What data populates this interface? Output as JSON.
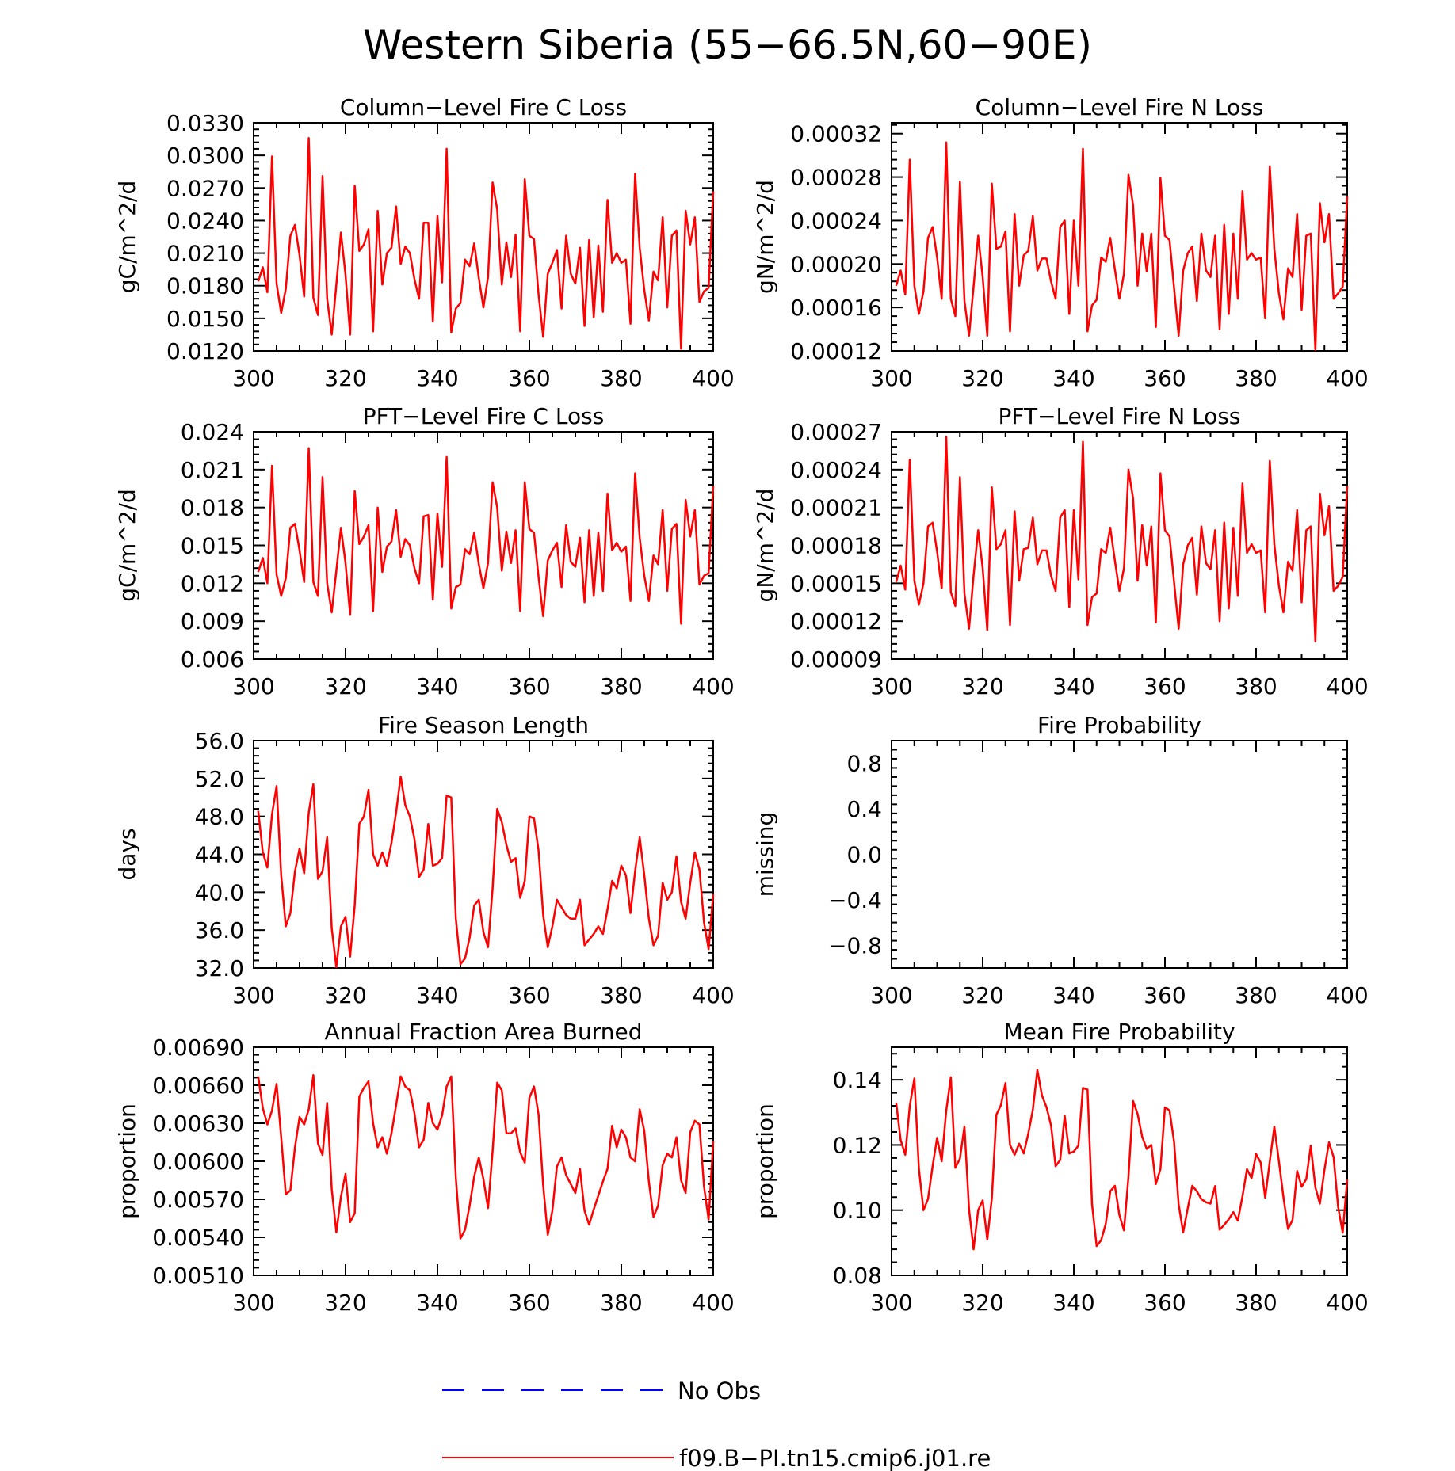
{
  "title": "Western Siberia (55−66.5N,60−90E)",
  "colors": {
    "model": "#ff0000",
    "obs": "#0000ff",
    "axes": "#000000"
  },
  "legend": {
    "obs_label": "No Obs",
    "model_label": "f09.B−PI.tn15.cmip6.j01.re"
  },
  "chart_data": [
    {
      "type": "line",
      "title": "Column−Level Fire C Loss",
      "ylabel": "gC/m^2/d",
      "xlim": [
        300,
        400
      ],
      "ylim": [
        0.012,
        0.033
      ],
      "xticks": [
        300,
        320,
        340,
        360,
        380,
        400
      ],
      "yticks": [
        "0.0120",
        "0.0150",
        "0.0180",
        "0.0210",
        "0.0240",
        "0.0270",
        "0.0300",
        "0.0330"
      ],
      "series": [
        {
          "name": "f09.B−PI.tn15.cmip6.j01.re",
          "x_start": 301,
          "x_step": 1,
          "y": [
            0.0184,
            0.0197,
            0.0174,
            0.0299,
            0.0182,
            0.0155,
            0.0177,
            0.0226,
            0.0236,
            0.0208,
            0.017,
            0.0316,
            0.0169,
            0.0153,
            0.0281,
            0.0168,
            0.0135,
            0.0181,
            0.0229,
            0.019,
            0.0135,
            0.0272,
            0.0212,
            0.0218,
            0.0232,
            0.0138,
            0.0249,
            0.0181,
            0.021,
            0.0215,
            0.0253,
            0.02,
            0.0216,
            0.021,
            0.0186,
            0.0168,
            0.0238,
            0.0238,
            0.0147,
            0.0244,
            0.0183,
            0.0306,
            0.0137,
            0.0159,
            0.0164,
            0.0204,
            0.0198,
            0.0219,
            0.0187,
            0.016,
            0.0188,
            0.0275,
            0.025,
            0.0181,
            0.022,
            0.0188,
            0.0227,
            0.0138,
            0.0278,
            0.0226,
            0.0223,
            0.0172,
            0.0133,
            0.0191,
            0.0201,
            0.0213,
            0.0159,
            0.0226,
            0.0191,
            0.0182,
            0.0215,
            0.0143,
            0.0222,
            0.0151,
            0.0217,
            0.0156,
            0.0259,
            0.0201,
            0.021,
            0.0201,
            0.0204,
            0.0145,
            0.0283,
            0.0215,
            0.0176,
            0.0148,
            0.0193,
            0.0185,
            0.0243,
            0.016,
            0.0226,
            0.0231,
            0.0122,
            0.0249,
            0.0218,
            0.0243,
            0.0165,
            0.0175,
            0.0178,
            0.0267
          ]
        }
      ]
    },
    {
      "type": "line",
      "title": "Column−Level Fire N Loss",
      "ylabel": "gN/m^2/d",
      "xlim": [
        300,
        400
      ],
      "ylim": [
        0.00012,
        0.00033
      ],
      "xticks": [
        300,
        320,
        340,
        360,
        380,
        400
      ],
      "yticks": [
        "0.00012",
        "0.00016",
        "0.00020",
        "0.00024",
        "0.00028",
        "0.00032"
      ],
      "series": [
        {
          "name": "f09.B−PI.tn15.cmip6.j01.re",
          "x_start": 301,
          "x_step": 1,
          "y": [
            0.00018,
            0.000194,
            0.000172,
            0.000296,
            0.00018,
            0.000154,
            0.000175,
            0.000224,
            0.000234,
            0.000206,
            0.000168,
            0.000312,
            0.000168,
            0.000152,
            0.000276,
            0.000166,
            0.000134,
            0.000179,
            0.000226,
            0.000188,
            0.000134,
            0.000274,
            0.000214,
            0.000216,
            0.00023,
            0.000138,
            0.000246,
            0.00018,
            0.000208,
            0.000212,
            0.000244,
            0.000194,
            0.000205,
            0.000205,
            0.000184,
            0.000168,
            0.000234,
            0.00024,
            0.000154,
            0.00024,
            0.00018,
            0.000306,
            0.000138,
            0.000162,
            0.000167,
            0.000206,
            0.000202,
            0.000224,
            0.000195,
            0.000168,
            0.000191,
            0.000282,
            0.000254,
            0.00018,
            0.000228,
            0.000193,
            0.000228,
            0.000142,
            0.000279,
            0.000226,
            0.000222,
            0.000178,
            0.000134,
            0.000194,
            0.00021,
            0.000216,
            0.000166,
            0.000228,
            0.000194,
            0.000188,
            0.000226,
            0.00014,
            0.000236,
            0.000154,
            0.000228,
            0.000168,
            0.000267,
            0.000204,
            0.00021,
            0.000204,
            0.000206,
            0.00015,
            0.00029,
            0.000214,
            0.000173,
            0.000149,
            0.000196,
            0.000188,
            0.000246,
            0.000158,
            0.000226,
            0.000228,
            0.000121,
            0.000256,
            0.00022,
            0.000246,
            0.000168,
            0.000173,
            0.000179,
            0.000262
          ]
        }
      ]
    },
    {
      "type": "line",
      "title": "PFT−Level Fire C Loss",
      "ylabel": "gC/m^2/d",
      "xlim": [
        300,
        400
      ],
      "ylim": [
        0.006,
        0.024
      ],
      "xticks": [
        300,
        320,
        340,
        360,
        380,
        400
      ],
      "yticks": [
        "0.006",
        "0.009",
        "0.012",
        "0.015",
        "0.018",
        "0.021",
        "0.024"
      ],
      "series": [
        {
          "name": "f09.B−PI.tn15.cmip6.j01.re",
          "x_start": 301,
          "x_step": 1,
          "y": [
            0.0129,
            0.014,
            0.012,
            0.0213,
            0.0127,
            0.011,
            0.0124,
            0.0164,
            0.0167,
            0.0146,
            0.0121,
            0.0227,
            0.0121,
            0.011,
            0.0204,
            0.012,
            0.0097,
            0.013,
            0.0164,
            0.0136,
            0.0095,
            0.0193,
            0.0151,
            0.0157,
            0.0166,
            0.0098,
            0.018,
            0.0129,
            0.0149,
            0.0153,
            0.0178,
            0.0141,
            0.0155,
            0.015,
            0.0132,
            0.012,
            0.0173,
            0.0174,
            0.0107,
            0.0175,
            0.0133,
            0.022,
            0.01,
            0.0117,
            0.0119,
            0.0147,
            0.0143,
            0.016,
            0.0135,
            0.0116,
            0.0136,
            0.02,
            0.018,
            0.013,
            0.0161,
            0.0136,
            0.0162,
            0.0098,
            0.02,
            0.0163,
            0.016,
            0.0125,
            0.0094,
            0.0138,
            0.0146,
            0.0152,
            0.0117,
            0.0166,
            0.0137,
            0.0133,
            0.0156,
            0.0105,
            0.0162,
            0.011,
            0.016,
            0.0114,
            0.0191,
            0.0146,
            0.0152,
            0.0145,
            0.0149,
            0.0106,
            0.0207,
            0.0156,
            0.0126,
            0.0106,
            0.0142,
            0.0135,
            0.0178,
            0.0114,
            0.0163,
            0.0167,
            0.0088,
            0.0186,
            0.0157,
            0.0178,
            0.0119,
            0.0126,
            0.0128,
            0.0197
          ]
        }
      ]
    },
    {
      "type": "line",
      "title": "PFT−Level Fire N Loss",
      "ylabel": "gN/m^2/d",
      "xlim": [
        300,
        400
      ],
      "ylim": [
        9e-05,
        0.00027
      ],
      "xticks": [
        300,
        320,
        340,
        360,
        380,
        400
      ],
      "yticks": [
        "0.00009",
        "0.00012",
        "0.00015",
        "0.00018",
        "0.00021",
        "0.00024",
        "0.00027"
      ],
      "series": [
        {
          "name": "f09.B−PI.tn15.cmip6.j01.re",
          "x_start": 301,
          "x_step": 1,
          "y": [
            0.000151,
            0.000164,
            0.000145,
            0.000248,
            0.000152,
            0.000133,
            0.00015,
            0.000195,
            0.000198,
            0.000175,
            0.000146,
            0.000266,
            0.000143,
            0.000132,
            0.000234,
            0.000142,
            0.000114,
            0.000156,
            0.000192,
            0.000162,
            0.000113,
            0.000226,
            0.000177,
            0.000181,
            0.000192,
            0.000117,
            0.000207,
            0.000152,
            0.000177,
            0.000178,
            0.000202,
            0.000165,
            0.000176,
            0.000176,
            0.000156,
            0.000144,
            0.000202,
            0.000208,
            0.000131,
            0.000208,
            0.000153,
            0.000262,
            0.000117,
            0.000139,
            0.000142,
            0.000177,
            0.000174,
            0.000194,
            0.000168,
            0.000144,
            0.000162,
            0.00024,
            0.000217,
            0.000152,
            0.000196,
            0.000164,
            0.000195,
            0.000119,
            0.000237,
            0.000192,
            0.000187,
            0.000151,
            0.000114,
            0.000165,
            0.00018,
            0.000186,
            0.000141,
            0.000195,
            0.000166,
            0.000161,
            0.000192,
            0.00012,
            0.000198,
            0.00013,
            0.000194,
            0.00014,
            0.000229,
            0.000174,
            0.000181,
            0.000174,
            0.000176,
            0.000127,
            0.000247,
            0.000181,
            0.000148,
            0.000127,
            0.000167,
            0.00016,
            0.000208,
            0.000135,
            0.000192,
            0.000195,
            0.000104,
            0.000221,
            0.000188,
            0.000211,
            0.000144,
            0.000148,
            0.000155,
            0.000227
          ]
        }
      ]
    },
    {
      "type": "line",
      "title": "Fire Season Length",
      "ylabel": "days",
      "xlim": [
        300,
        400
      ],
      "ylim": [
        32,
        56
      ],
      "xticks": [
        300,
        320,
        340,
        360,
        380,
        400
      ],
      "yticks": [
        "32.0",
        "36.0",
        "40.0",
        "44.0",
        "48.0",
        "52.0",
        "56.0"
      ],
      "series": [
        {
          "name": "f09.B−PI.tn15.cmip6.j01.re",
          "x_start": 301,
          "x_step": 1,
          "y": [
            48.6,
            44.2,
            42.6,
            48.2,
            51.2,
            41.8,
            36.4,
            37.8,
            42.2,
            44.6,
            42.0,
            48.4,
            51.4,
            41.4,
            42.2,
            45.8,
            36.2,
            32.1,
            36.4,
            37.4,
            33.2,
            38.6,
            47.2,
            48.0,
            50.8,
            44.0,
            42.8,
            44.2,
            42.8,
            45.2,
            48.4,
            52.2,
            49.2,
            48.0,
            45.6,
            41.6,
            42.4,
            47.2,
            42.8,
            43.0,
            43.6,
            50.2,
            50.0,
            37.2,
            32.4,
            33.0,
            35.2,
            38.6,
            39.2,
            35.8,
            34.2,
            40.4,
            48.8,
            47.4,
            45.0,
            43.2,
            43.6,
            39.4,
            41.2,
            48.0,
            47.8,
            44.4,
            37.6,
            34.2,
            36.4,
            39.2,
            38.4,
            37.6,
            37.2,
            37.2,
            39.2,
            34.4,
            35.0,
            35.6,
            36.4,
            35.6,
            38.2,
            41.2,
            40.4,
            42.8,
            41.8,
            37.8,
            42.2,
            45.8,
            41.8,
            37.2,
            34.4,
            35.4,
            41.0,
            39.2,
            40.0,
            43.8,
            39.0,
            37.2,
            41.0,
            44.2,
            42.4,
            36.8,
            34.0,
            39.8
          ]
        }
      ]
    },
    {
      "type": "line",
      "title": "Fire Probability",
      "ylabel": "missing",
      "xlim": [
        300,
        400
      ],
      "ylim": [
        -1.0,
        1.0
      ],
      "xticks": [
        300,
        320,
        340,
        360,
        380,
        400
      ],
      "yticks": [
        "−0.8",
        "−0.4",
        "0.0",
        "0.4",
        "0.8"
      ],
      "series": []
    },
    {
      "type": "line",
      "title": "Annual Fraction Area Burned",
      "ylabel": "proportion",
      "xlim": [
        300,
        400
      ],
      "ylim": [
        0.0051,
        0.0069
      ],
      "xticks": [
        300,
        320,
        340,
        360,
        380,
        400
      ],
      "yticks": [
        "0.00510",
        "0.00540",
        "0.00570",
        "0.00600",
        "0.00630",
        "0.00660",
        "0.00690"
      ],
      "series": [
        {
          "name": "f09.B−PI.tn15.cmip6.j01.re",
          "x_start": 301,
          "x_step": 1,
          "y": [
            0.00667,
            0.00642,
            0.00629,
            0.0064,
            0.00661,
            0.00619,
            0.00574,
            0.00577,
            0.00611,
            0.00635,
            0.00629,
            0.00641,
            0.00668,
            0.00614,
            0.00605,
            0.00646,
            0.00578,
            0.00544,
            0.00572,
            0.0059,
            0.00552,
            0.00559,
            0.00651,
            0.00658,
            0.00663,
            0.0063,
            0.00611,
            0.00619,
            0.00606,
            0.00622,
            0.00644,
            0.00667,
            0.00659,
            0.00656,
            0.00638,
            0.00611,
            0.00617,
            0.00646,
            0.0063,
            0.00625,
            0.00636,
            0.00659,
            0.00667,
            0.00587,
            0.00539,
            0.00546,
            0.00565,
            0.00588,
            0.00603,
            0.00586,
            0.00563,
            0.00608,
            0.00662,
            0.00656,
            0.00622,
            0.00622,
            0.00626,
            0.00607,
            0.00599,
            0.0065,
            0.00659,
            0.00637,
            0.00581,
            0.00542,
            0.00561,
            0.00596,
            0.00603,
            0.00589,
            0.00582,
            0.00575,
            0.00594,
            0.00561,
            0.0055,
            0.00562,
            0.00573,
            0.00584,
            0.00594,
            0.00628,
            0.00611,
            0.00625,
            0.00619,
            0.00603,
            0.006,
            0.00641,
            0.00624,
            0.00584,
            0.00556,
            0.00565,
            0.00597,
            0.00606,
            0.00603,
            0.00619,
            0.00585,
            0.00575,
            0.00623,
            0.00632,
            0.00629,
            0.0058,
            0.00554,
            0.00616
          ]
        }
      ]
    },
    {
      "type": "line",
      "title": "Mean Fire Probability",
      "ylabel": "proportion",
      "xlim": [
        300,
        400
      ],
      "ylim": [
        0.08,
        0.15
      ],
      "xticks": [
        300,
        320,
        340,
        360,
        380,
        400
      ],
      "yticks": [
        "0.08",
        "0.10",
        "0.12",
        "0.14"
      ],
      "series": [
        {
          "name": "f09.B−PI.tn15.cmip6.j01.re",
          "x_start": 301,
          "x_step": 1,
          "y": [
            0.133,
            0.1215,
            0.117,
            0.132,
            0.1404,
            0.1127,
            0.1,
            0.1034,
            0.1135,
            0.1222,
            0.115,
            0.1305,
            0.1408,
            0.113,
            0.1158,
            0.1257,
            0.1002,
            0.088,
            0.1,
            0.103,
            0.091,
            0.1035,
            0.1293,
            0.1322,
            0.139,
            0.12,
            0.117,
            0.1204,
            0.1174,
            0.1234,
            0.1308,
            0.143,
            0.1352,
            0.1316,
            0.126,
            0.1135,
            0.1154,
            0.1289,
            0.1174,
            0.118,
            0.1198,
            0.1375,
            0.137,
            0.1018,
            0.089,
            0.0908,
            0.0958,
            0.1058,
            0.1075,
            0.0985,
            0.0938,
            0.1103,
            0.1335,
            0.1295,
            0.1225,
            0.1188,
            0.12,
            0.108,
            0.1126,
            0.1315,
            0.1306,
            0.121,
            0.1017,
            0.0932,
            0.1006,
            0.1075,
            0.1058,
            0.1034,
            0.1024,
            0.102,
            0.1074,
            0.094,
            0.0955,
            0.0972,
            0.0994,
            0.0968,
            0.1042,
            0.1126,
            0.1098,
            0.1172,
            0.1146,
            0.1038,
            0.115,
            0.1256,
            0.115,
            0.104,
            0.0942,
            0.097,
            0.112,
            0.1072,
            0.1095,
            0.1198,
            0.107,
            0.102,
            0.1124,
            0.1208,
            0.1163,
            0.101,
            0.0931,
            0.1094
          ]
        }
      ]
    }
  ]
}
